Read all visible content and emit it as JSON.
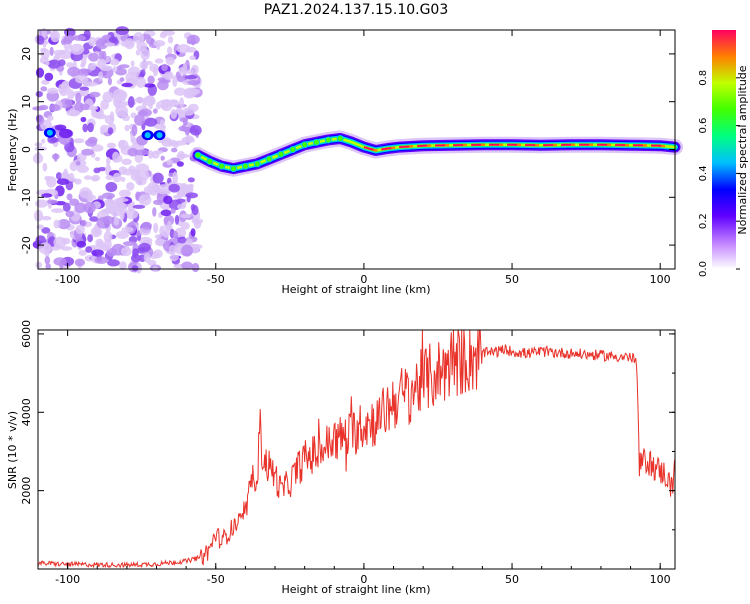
{
  "title": "PAZ1.2024.137.15.10.G03",
  "chart_data": [
    {
      "type": "heatmap",
      "xlabel": "Height of straight line (km)",
      "ylabel": "Frequency (Hz)",
      "xlim": [
        -110,
        105
      ],
      "ylim": [
        -25,
        25
      ],
      "xticks": [
        -100,
        -50,
        0,
        50,
        100
      ],
      "yticks": [
        -20,
        -10,
        0,
        10,
        20
      ],
      "colorbar": {
        "label": "Normalized spectral amplitude",
        "range": [
          0,
          1
        ],
        "ticks": [
          "0.0",
          "0.2",
          "0.4",
          "0.6",
          "0.8"
        ],
        "colors": [
          "#ffffff",
          "#c080ff",
          "#6000ff",
          "#0000ff",
          "#00c0ff",
          "#00ff80",
          "#40ff00",
          "#c0ff00",
          "#ff8000",
          "#ff0060"
        ]
      },
      "noise_region_x": [
        -110,
        -56
      ],
      "ridge": {
        "x": [
          -56,
          -52,
          -48,
          -44,
          -40,
          -36,
          -32,
          -28,
          -24,
          -20,
          -16,
          -12,
          -8,
          -4,
          0,
          4,
          8,
          12,
          20,
          30,
          40,
          50,
          60,
          70,
          80,
          90,
          100,
          105
        ],
        "freq": [
          -1.2,
          -2.5,
          -3.5,
          -4.0,
          -3.5,
          -3.0,
          -2.0,
          -1.0,
          0.0,
          1.0,
          1.5,
          2.0,
          2.3,
          1.5,
          0.5,
          -0.2,
          0.2,
          0.5,
          0.8,
          0.9,
          1.0,
          1.0,
          0.9,
          1.0,
          1.0,
          0.9,
          0.8,
          0.5
        ]
      }
    },
    {
      "type": "line",
      "xlabel": "Height of straight line (km)",
      "ylabel": "SNR (10 * v/v)",
      "xlim": [
        -110,
        105
      ],
      "ylim": [
        0,
        6100
      ],
      "xticks": [
        -100,
        -50,
        0,
        50,
        100
      ],
      "yticks": [
        2000,
        4000,
        6000
      ],
      "color": "#e8322a",
      "x": [
        -110,
        -100,
        -90,
        -80,
        -70,
        -60,
        -55,
        -52,
        -50,
        -48,
        -45,
        -42,
        -40,
        -38,
        -36,
        -35,
        -34,
        -32,
        -30,
        -28,
        -25,
        -22,
        -20,
        -15,
        -10,
        -5,
        0,
        5,
        10,
        15,
        20,
        25,
        30,
        35,
        40,
        45,
        48,
        50,
        55,
        60,
        70,
        80,
        90,
        92,
        93,
        95,
        98,
        100,
        102,
        104,
        105
      ],
      "y": [
        150,
        120,
        110,
        100,
        130,
        200,
        300,
        500,
        900,
        700,
        1000,
        1200,
        1400,
        2200,
        2500,
        3500,
        2800,
        2600,
        2400,
        2000,
        2200,
        2600,
        2800,
        3000,
        3300,
        3400,
        3700,
        3800,
        4300,
        4500,
        4800,
        5000,
        5300,
        5400,
        5500,
        5550,
        5600,
        5550,
        5500,
        5550,
        5500,
        5450,
        5400,
        5300,
        2600,
        2800,
        2600,
        2500,
        2400,
        2000,
        3000
      ]
    }
  ]
}
